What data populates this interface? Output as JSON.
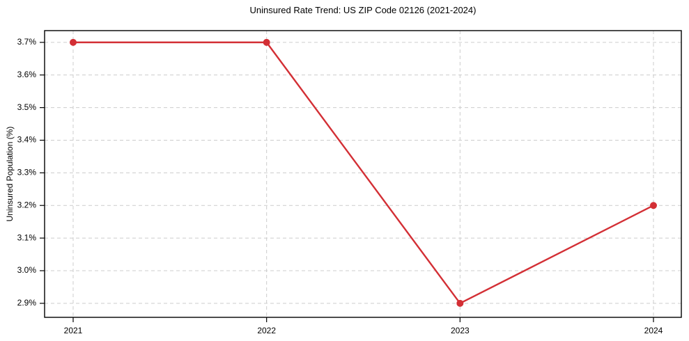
{
  "chart_data": {
    "type": "line",
    "title": "Uninsured Rate Trend: US ZIP Code 02126 (2021-2024)",
    "xlabel": "",
    "ylabel": "Uninsured Population (%)",
    "categories": [
      "2021",
      "2022",
      "2023",
      "2024"
    ],
    "series": [
      {
        "name": "Uninsured Population (%)",
        "values": [
          3.7,
          3.7,
          2.9,
          3.2
        ]
      }
    ],
    "y_ticks": [
      3.7,
      3.6,
      3.5,
      3.4,
      3.3,
      3.2,
      3.1,
      3.0,
      2.9
    ],
    "y_tick_labels": [
      "3.7%",
      "3.6%",
      "3.5%",
      "3.4%",
      "3.3%",
      "3.2%",
      "3.1%",
      "3.0%",
      "2.9%"
    ],
    "ylim": [
      2.857,
      3.736
    ],
    "grid": true,
    "legend_position": "none",
    "line_color": "#d32f35",
    "marker": "circle",
    "grid_color": "#cccccc",
    "axis_color": "#000000",
    "text_color": "#000000"
  }
}
